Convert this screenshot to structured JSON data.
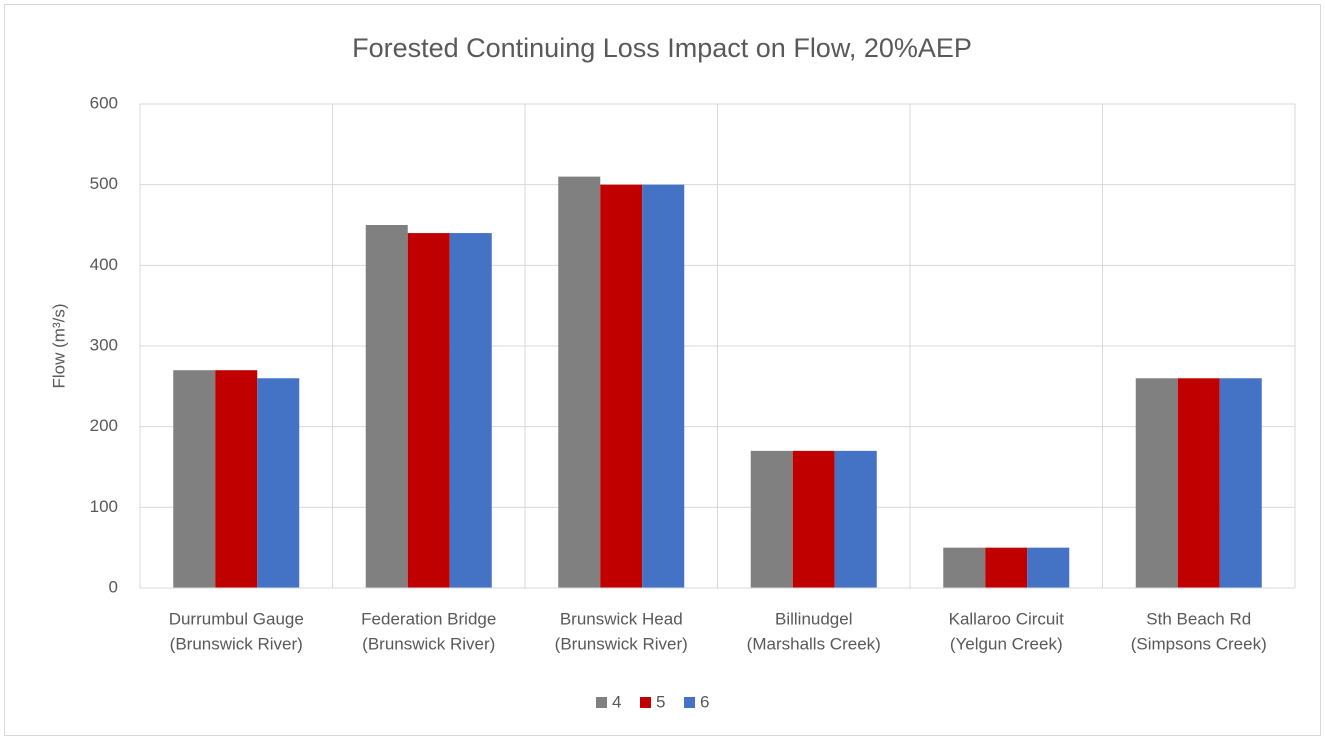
{
  "chart_data": {
    "type": "bar",
    "title": "Forested Continuing Loss Impact on Flow, 20%AEP",
    "y_label": "Flow (m³/s)",
    "categories": [
      [
        "Durrumbul Gauge",
        "(Brunswick River)"
      ],
      [
        "Federation Bridge",
        "(Brunswick River)"
      ],
      [
        "Brunswick Head",
        "(Brunswick River)"
      ],
      [
        "Billinudgel",
        "(Marshalls Creek)"
      ],
      [
        "Kallaroo Circuit",
        "(Yelgun Creek)"
      ],
      [
        "Sth Beach Rd",
        "(Simpsons Creek)"
      ]
    ],
    "series": [
      {
        "name": "4",
        "color": "#808080",
        "values": [
          270,
          450,
          510,
          170,
          50,
          260
        ]
      },
      {
        "name": "5",
        "color": "#c00000",
        "values": [
          270,
          440,
          500,
          170,
          50,
          260
        ]
      },
      {
        "name": "6",
        "color": "#4472c4",
        "values": [
          260,
          440,
          500,
          170,
          50,
          260
        ]
      }
    ],
    "ylim": [
      0,
      600
    ],
    "yticks": [
      0,
      100,
      200,
      300,
      400,
      500,
      600
    ],
    "grid": true,
    "legend": "bottom"
  }
}
